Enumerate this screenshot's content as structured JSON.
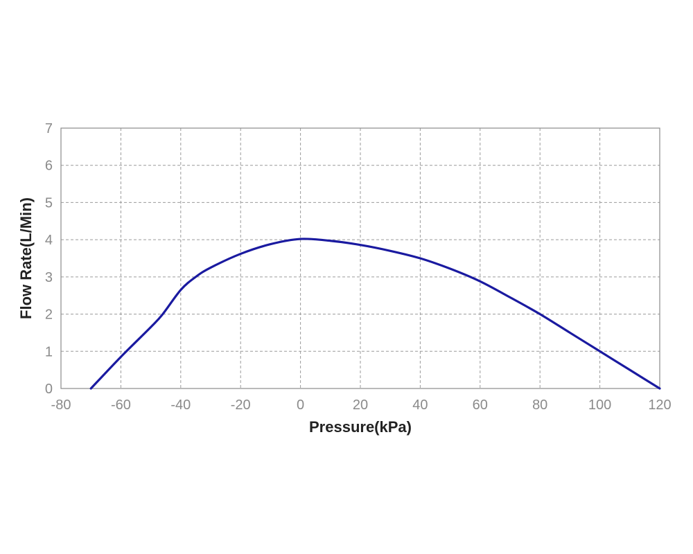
{
  "chart_data": {
    "type": "line",
    "title": "",
    "xlabel": "Pressure(kPa)",
    "ylabel": "Flow Rate(L/Min)",
    "xlim": [
      -80,
      120
    ],
    "ylim": [
      0,
      7
    ],
    "x_ticks": [
      -80,
      -60,
      -40,
      -20,
      0,
      20,
      40,
      60,
      80,
      100,
      120
    ],
    "y_ticks": [
      0,
      1,
      2,
      3,
      4,
      5,
      6,
      7
    ],
    "grid": true,
    "series": [
      {
        "color": "#1a1aa0",
        "x": [
          -70,
          -60,
          -50,
          -46,
          -40,
          -35,
          -30,
          -20,
          -10,
          0,
          10,
          20,
          30,
          40,
          50,
          60,
          70,
          80,
          90,
          100,
          110,
          120
        ],
        "y": [
          0,
          0.85,
          1.65,
          2.0,
          2.65,
          3.0,
          3.25,
          3.62,
          3.88,
          4.02,
          3.97,
          3.86,
          3.7,
          3.5,
          3.22,
          2.88,
          2.45,
          2.0,
          1.5,
          1.0,
          0.5,
          0.0
        ]
      }
    ]
  }
}
